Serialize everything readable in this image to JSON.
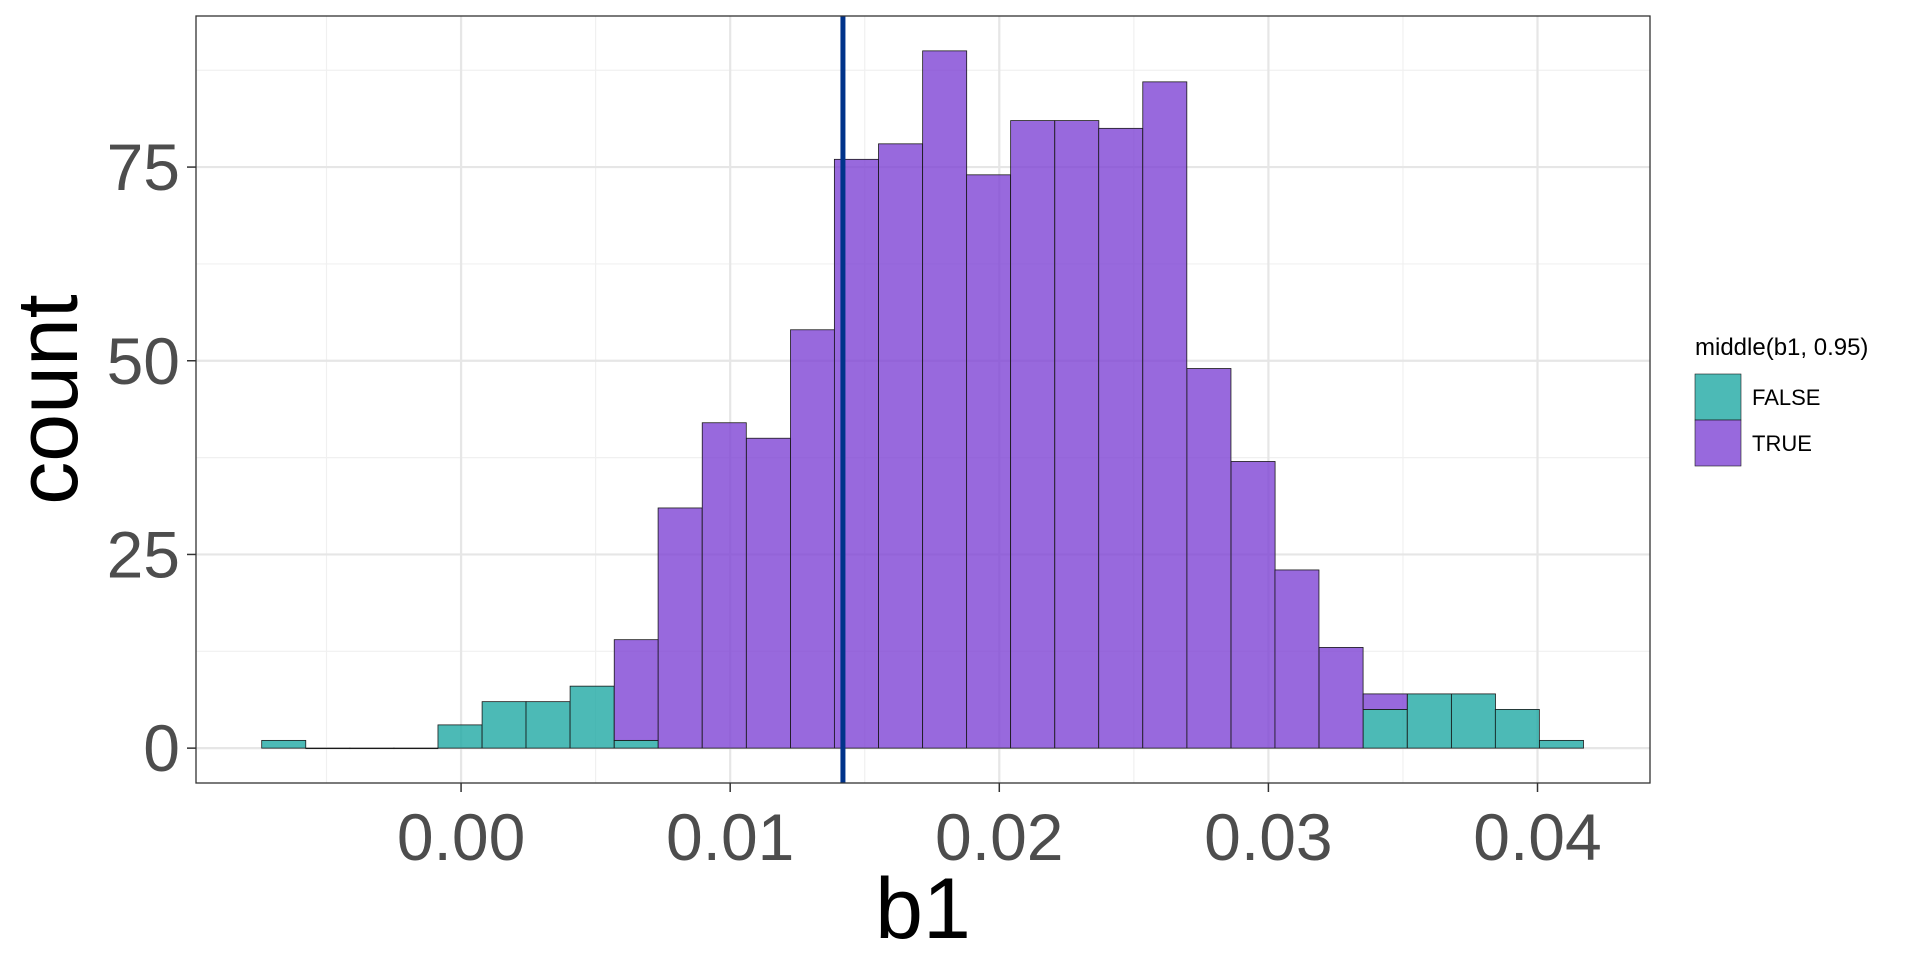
{
  "chart_data": {
    "type": "bar",
    "xlabel": "b1",
    "ylabel": "count",
    "xlim": [
      -0.00985,
      0.04418
    ],
    "ylim": [
      -4.5,
      94.5
    ],
    "x_ticks": [
      0.0,
      0.01,
      0.02,
      0.03,
      0.04
    ],
    "x_tick_labels": [
      "0.00",
      "0.01",
      "0.02",
      "0.03",
      "0.04"
    ],
    "y_ticks": [
      0,
      25,
      50,
      75
    ],
    "y_tick_labels": [
      "0",
      "25",
      "50",
      "75"
    ],
    "bin_width": 0.001637,
    "grid": true,
    "legend": {
      "title": "middle(b1, 0.95)",
      "position": "right",
      "entries": [
        {
          "label": "FALSE",
          "color": "#1aa7a1"
        },
        {
          "label": "TRUE",
          "color": "#7b3fd4"
        }
      ]
    },
    "series": [
      {
        "name": "FALSE",
        "color": "#1aa7a1",
        "bins": [
          {
            "x": -0.00659,
            "count": 1
          },
          {
            "x": -0.00495,
            "count": 0
          },
          {
            "x": -0.00331,
            "count": 0
          },
          {
            "x": -0.00168,
            "count": 0
          },
          {
            "x": -4e-05,
            "count": 3
          },
          {
            "x": 0.0016,
            "count": 6
          },
          {
            "x": 0.00323,
            "count": 6
          },
          {
            "x": 0.00487,
            "count": 8
          },
          {
            "x": 0.00651,
            "count": 1
          },
          {
            "x": 0.03434,
            "count": 5
          },
          {
            "x": 0.03598,
            "count": 7
          },
          {
            "x": 0.03762,
            "count": 7
          },
          {
            "x": 0.03925,
            "count": 5
          },
          {
            "x": 0.04089,
            "count": 1
          }
        ]
      },
      {
        "name": "TRUE",
        "color": "#7b3fd4",
        "bins": [
          {
            "x": 0.00651,
            "count": 13
          },
          {
            "x": 0.00814,
            "count": 31
          },
          {
            "x": 0.00978,
            "count": 42
          },
          {
            "x": 0.01142,
            "count": 40
          },
          {
            "x": 0.01306,
            "count": 54
          },
          {
            "x": 0.01469,
            "count": 76
          },
          {
            "x": 0.01633,
            "count": 78
          },
          {
            "x": 0.01797,
            "count": 90
          },
          {
            "x": 0.0196,
            "count": 74
          },
          {
            "x": 0.02124,
            "count": 81
          },
          {
            "x": 0.02288,
            "count": 81
          },
          {
            "x": 0.02451,
            "count": 80
          },
          {
            "x": 0.02615,
            "count": 86
          },
          {
            "x": 0.02779,
            "count": 49
          },
          {
            "x": 0.02943,
            "count": 37
          },
          {
            "x": 0.03106,
            "count": 23
          },
          {
            "x": 0.0327,
            "count": 13
          },
          {
            "x": 0.03434,
            "count": 2
          }
        ]
      }
    ],
    "vline": {
      "x": 0.01419,
      "color": "#00338a"
    }
  }
}
